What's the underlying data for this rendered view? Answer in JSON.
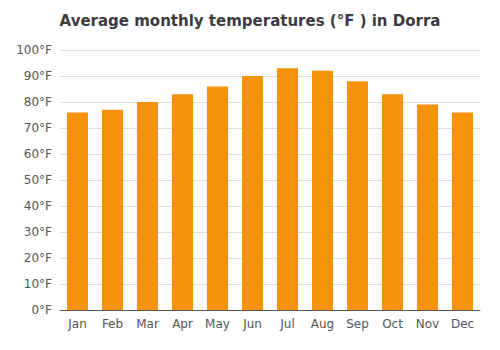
{
  "chart_data": {
    "type": "bar",
    "title": "Average monthly temperatures (°F ) in Dorra",
    "categories": [
      "Jan",
      "Feb",
      "Mar",
      "Apr",
      "May",
      "Jun",
      "Jul",
      "Aug",
      "Sep",
      "Oct",
      "Nov",
      "Dec"
    ],
    "values": [
      76,
      77,
      80,
      83,
      86,
      90,
      93,
      92,
      88,
      83,
      79,
      76
    ],
    "color": "#F5920A",
    "ylim": [
      0,
      100
    ],
    "yticks": [
      {
        "value": 0,
        "label": "0°F"
      },
      {
        "value": 10,
        "label": "10°F"
      },
      {
        "value": 20,
        "label": "20°F"
      },
      {
        "value": 30,
        "label": "30°F"
      },
      {
        "value": 40,
        "label": "40°F"
      },
      {
        "value": 50,
        "label": "50°F"
      },
      {
        "value": 60,
        "label": "60°F"
      },
      {
        "value": 70,
        "label": "70°F"
      },
      {
        "value": 80,
        "label": "80°F"
      },
      {
        "value": 90,
        "label": "90°F"
      },
      {
        "value": 100,
        "label": "100°F"
      }
    ],
    "grid": true
  }
}
